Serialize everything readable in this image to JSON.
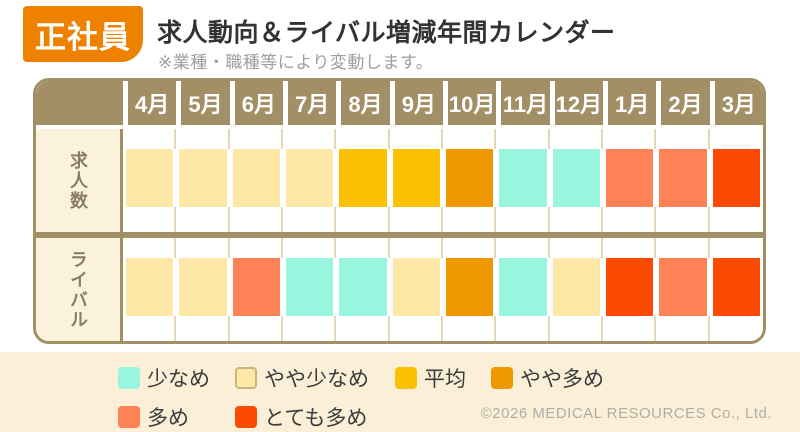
{
  "header": {
    "badge": "正社員",
    "title": "求人動向＆ライバル増減年間カレンダー",
    "subtitle": "※業種・職種等により変動します。"
  },
  "chart_data": {
    "type": "heatmap",
    "title": "求人動向＆ライバル増減年間カレンダー",
    "categories": [
      "4月",
      "5月",
      "6月",
      "7月",
      "8月",
      "9月",
      "10月",
      "11月",
      "12月",
      "1月",
      "2月",
      "3月"
    ],
    "series": [
      {
        "name": "求人数",
        "values": [
          "やや少なめ",
          "やや少なめ",
          "やや少なめ",
          "やや少なめ",
          "平均",
          "平均",
          "やや多め",
          "少なめ",
          "少なめ",
          "多め",
          "多め",
          "とても多め"
        ]
      },
      {
        "name": "ライバル",
        "values": [
          "やや少なめ",
          "やや少なめ",
          "多め",
          "少なめ",
          "少なめ",
          "やや少なめ",
          "やや多め",
          "少なめ",
          "やや少なめ",
          "とても多め",
          "多め",
          "とても多め"
        ]
      }
    ],
    "legend_position": "bottom"
  },
  "legend": {
    "items": [
      {
        "label": "少なめ",
        "color": "#99F5DE",
        "border": ""
      },
      {
        "label": "やや少なめ",
        "color": "#FDE8A7",
        "border": "#C9B780"
      },
      {
        "label": "平均",
        "color": "#FCC004",
        "border": ""
      },
      {
        "label": "やや多め",
        "color": "#F09800",
        "border": ""
      },
      {
        "label": "多め",
        "color": "#FD8255",
        "border": ""
      },
      {
        "label": "とても多め",
        "color": "#FB4A04",
        "border": ""
      }
    ]
  },
  "colors": {
    "levels": {
      "少なめ": "#99F5DE",
      "やや少なめ": "#FDE8A7",
      "平均": "#FCC004",
      "やや多め": "#F09800",
      "多め": "#FD8255",
      "とても多め": "#FB4A04"
    },
    "header_brown": "#A38F66",
    "grid_tan": "#E5D7B9",
    "label_cream": "#FBF2DC",
    "legend_band": "#FBF0D7",
    "badge_orange": "#EE8100"
  },
  "footer": {
    "copyright": "©2026 MEDICAL RESOURCES Co., Ltd."
  }
}
